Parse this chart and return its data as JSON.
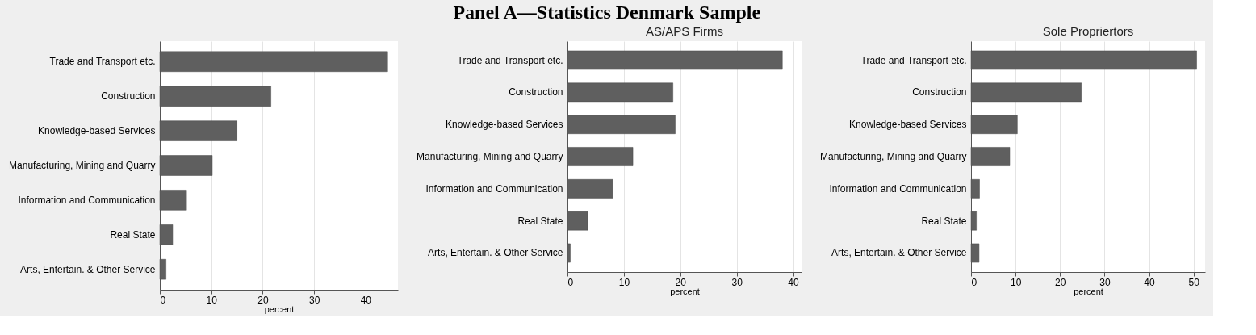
{
  "chart_data": [
    {
      "type": "bar",
      "orientation": "horizontal",
      "xlabel": "percent",
      "categories": [
        "Trade and Transport etc.",
        "Construction",
        "Knowledge-based Services",
        "Manufacturing, Mining and Quarry",
        "Information and Communication",
        "Real State",
        "Arts, Entertain. & Other Service"
      ],
      "series": [
        {
          "color": "#5f5f5f",
          "values": [
            44.3,
            21.6,
            15.0,
            10.2,
            5.2,
            2.5,
            1.2
          ]
        }
      ],
      "xlim": [
        0,
        46.3
      ],
      "xticks": [
        0,
        10,
        20,
        30,
        40
      ],
      "grid": "x"
    },
    {
      "type": "bar",
      "orientation": "horizontal",
      "title": "Panel A—Statistics Denmark Sample",
      "subtitle": "AS/APS Firms",
      "xlabel": "percent",
      "categories": [
        "Trade and Transport etc.",
        "Construction",
        "Knowledge-based Services",
        "Manufacturing, Mining and Quarry",
        "Information and Communication",
        "Real State",
        "Arts, Entertain. & Other Service"
      ],
      "series": [
        {
          "color": "#5f5f5f",
          "values": [
            38.1,
            18.7,
            19.1,
            11.6,
            8.0,
            3.6,
            0.5
          ]
        }
      ],
      "xlim": [
        0,
        41.5
      ],
      "xticks": [
        0,
        10,
        20,
        30,
        40
      ],
      "grid": "x"
    },
    {
      "type": "bar",
      "orientation": "horizontal",
      "subtitle": "Sole Propriertors",
      "xlabel": "percent",
      "categories": [
        "Trade and Transport etc.",
        "Construction",
        "Knowledge-based Services",
        "Manufacturing, Mining and Quarry",
        "Information and Communication",
        "Real State",
        "Arts, Entertain. & Other Service"
      ],
      "series": [
        {
          "color": "#5f5f5f",
          "values": [
            50.7,
            24.8,
            10.4,
            8.7,
            1.9,
            1.2,
            1.8
          ]
        }
      ],
      "xlim": [
        0,
        52.6
      ],
      "xticks": [
        0,
        10,
        20,
        30,
        40,
        50
      ],
      "grid": "x"
    }
  ]
}
